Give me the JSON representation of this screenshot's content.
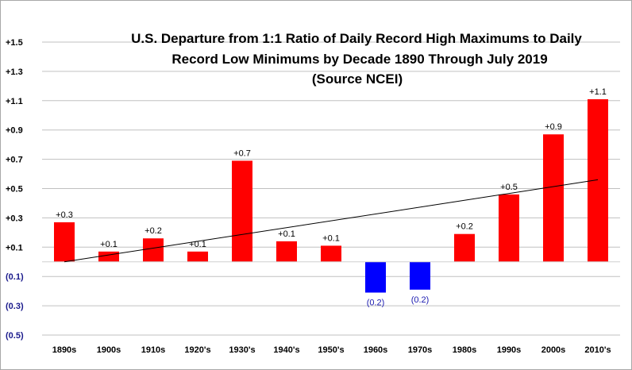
{
  "chart_data": {
    "type": "bar",
    "title_lines": [
      "U.S. Departure from 1:1 Ratio of Daily Record High Maximums to Daily",
      "Record Low Minimums  by Decade 1890 Through  July 2019",
      "(Source NCEI)"
    ],
    "xlabel": "",
    "ylabel": "",
    "categories": [
      "1890s",
      "1900s",
      "1910s",
      "1920's",
      "1930's",
      "1940's",
      "1950's",
      "1960s",
      "1970s",
      "1980s",
      "1990s",
      "2000s",
      "2010's"
    ],
    "values": [
      0.27,
      0.07,
      0.16,
      0.07,
      0.69,
      0.14,
      0.11,
      -0.21,
      -0.19,
      0.19,
      0.46,
      0.87,
      1.11
    ],
    "data_labels": [
      "+0.3",
      "+0.1",
      "+0.2",
      "+0.1",
      "+0.7",
      "+0.1",
      "+0.1",
      "(0.2)",
      "(0.2)",
      "+0.2",
      "+0.5",
      "+0.9",
      "+1.1"
    ],
    "ylim": [
      -0.5,
      1.5
    ],
    "yticks": [
      {
        "value": 1.5,
        "label": "+1.5"
      },
      {
        "value": 1.3,
        "label": "+1.3"
      },
      {
        "value": 1.1,
        "label": "+1.1"
      },
      {
        "value": 0.9,
        "label": "+0.9"
      },
      {
        "value": 0.7,
        "label": "+0.7"
      },
      {
        "value": 0.5,
        "label": "+0.5"
      },
      {
        "value": 0.3,
        "label": "+0.3"
      },
      {
        "value": 0.1,
        "label": "+0.1"
      },
      {
        "value": -0.1,
        "label": "(0.1)"
      },
      {
        "value": -0.3,
        "label": "(0.3)"
      },
      {
        "value": -0.5,
        "label": "(0.5)"
      }
    ],
    "trendline": {
      "start": 0.0,
      "end": 0.56
    },
    "grid": true,
    "legend": "none",
    "colors": {
      "positive": "#ff0000",
      "negative": "#0000ff",
      "grid": "#c0c0c0",
      "trendline": "#000000"
    }
  }
}
